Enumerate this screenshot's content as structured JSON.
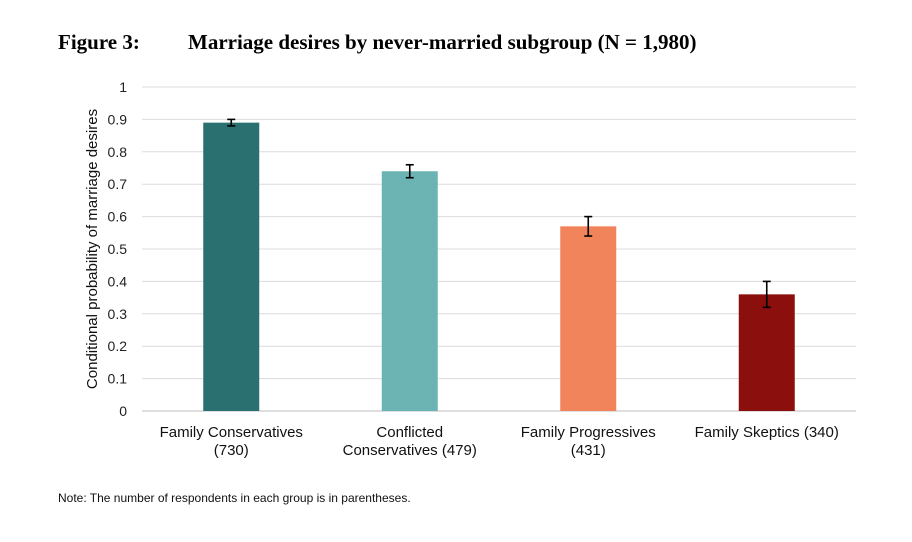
{
  "figure": {
    "label": "Figure 3:",
    "title": "Marriage desires by never-married subgroup (N = 1,980)"
  },
  "note": "Note: The number of respondents in each group is in parentheses.",
  "chart_data": {
    "type": "bar",
    "ylabel": "Conditional probability of marriage desires",
    "xlabel": "",
    "ylim": [
      0,
      1
    ],
    "yticks": [
      0,
      0.1,
      0.2,
      0.3,
      0.4,
      0.5,
      0.6,
      0.7,
      0.8,
      0.9,
      1
    ],
    "ytick_labels": [
      "0",
      "0.1",
      "0.2",
      "0.3",
      "0.4",
      "0.5",
      "0.6",
      "0.7",
      "0.8",
      "0.9",
      "1"
    ],
    "grid": true,
    "legend": "none",
    "categories": [
      [
        "Family Conservatives",
        "(730)"
      ],
      [
        "Conflicted",
        "Conservatives (479)"
      ],
      [
        "Family Progressives",
        "(431)"
      ],
      [
        "Family Skeptics (340)"
      ]
    ],
    "values": [
      0.89,
      0.74,
      0.57,
      0.36
    ],
    "error_low": [
      0.88,
      0.72,
      0.54,
      0.32
    ],
    "error_high": [
      0.9,
      0.76,
      0.6,
      0.4
    ],
    "colors": [
      "#2a7070",
      "#6cb4b4",
      "#f2845c",
      "#8b0f0c"
    ]
  }
}
